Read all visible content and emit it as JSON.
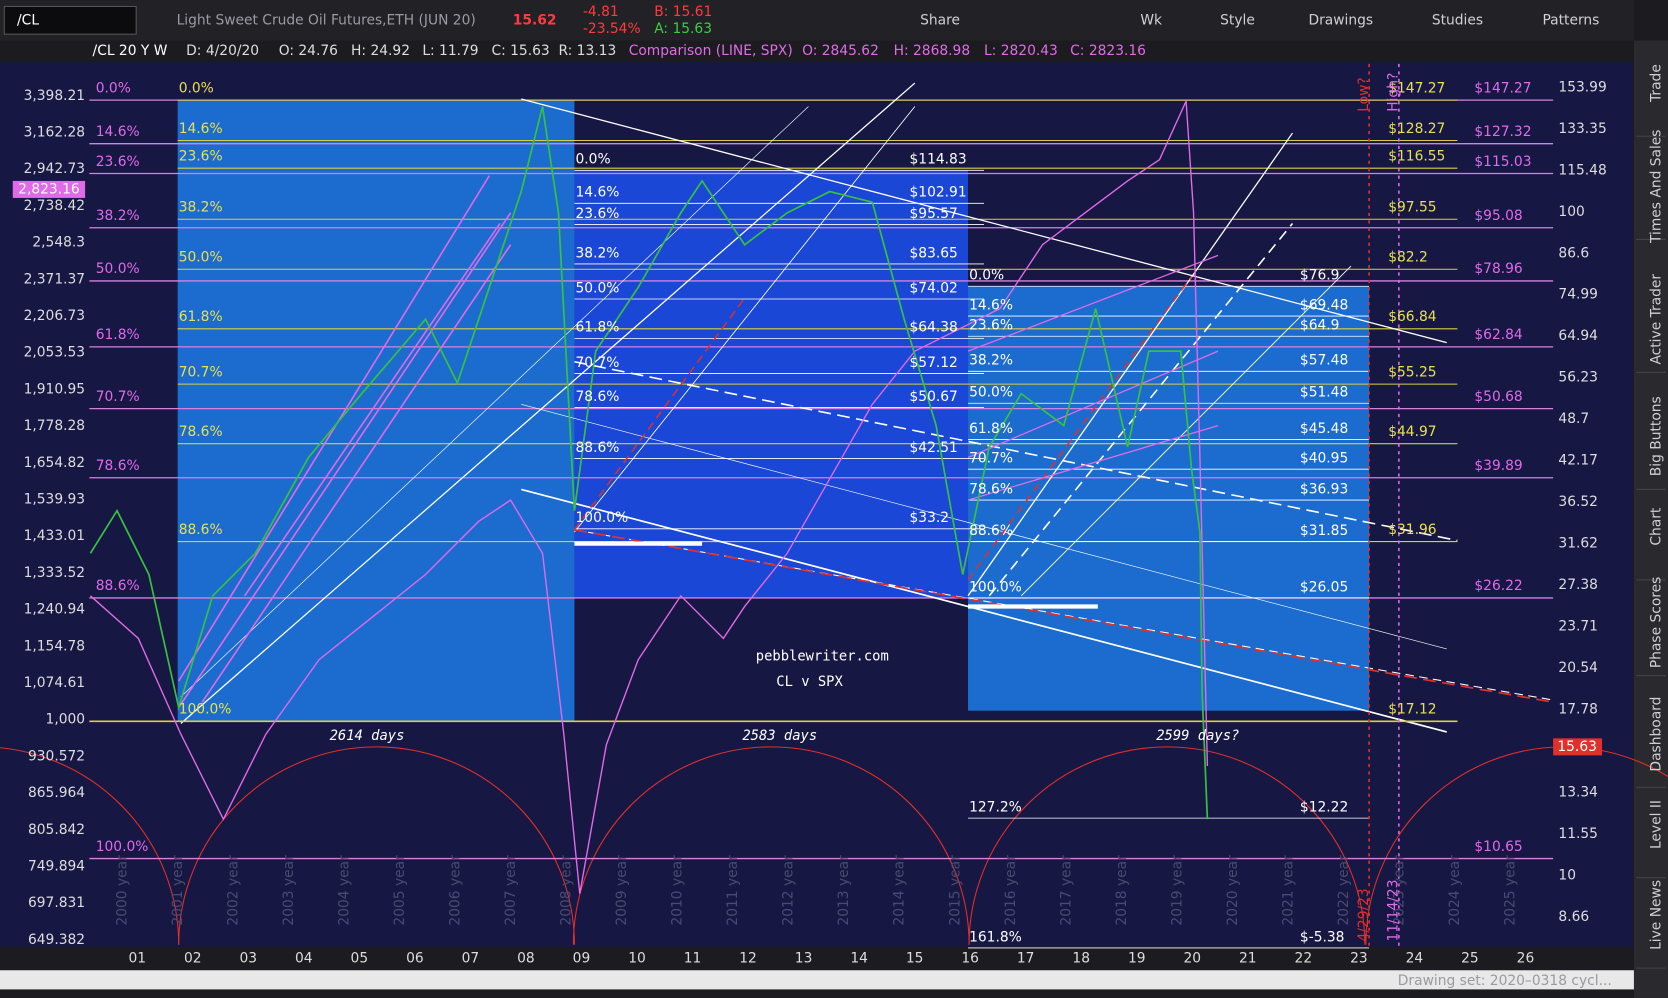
{
  "toolbar": {
    "symbol": "/CL",
    "description": "Light Sweet Crude Oil Futures,ETH (JUN 20)",
    "last": "15.62",
    "change": "-4.81",
    "change_pct": "-23.54%",
    "bid": "B: 15.61",
    "ask": "A: 15.63",
    "buttons": [
      "Share",
      "Wk",
      "Style",
      "Drawings",
      "Studies",
      "Patterns"
    ]
  },
  "header": {
    "study": "/CL 20 Y W",
    "items": [
      "D: 4/20/20",
      "O: 24.76",
      "H: 24.92",
      "L: 11.79",
      "C: 15.63",
      "R: 13.13"
    ],
    "comparison": "Comparison (LINE, SPX)",
    "comparison_items": [
      "O: 2845.62",
      "H: 2868.98",
      "L: 2820.43",
      "C: 2823.16"
    ]
  },
  "left_axis": {
    "labels": [
      "3,398.21",
      "3,162.28",
      "2,942.73",
      "2,738.42",
      "2,548.3",
      "2,371.37",
      "2,206.73",
      "2,053.53",
      "1,910.95",
      "1,778.28",
      "1,654.82",
      "1,539.93",
      "1,433.01",
      "1,333.52",
      "1,240.94",
      "1,154.78",
      "1,074.61",
      "1,000",
      "930.572",
      "865.964",
      "805.842",
      "749.894",
      "697.831",
      "649.382"
    ],
    "current": "2,823.16"
  },
  "right_axis": {
    "labels": [
      "153.99",
      "133.35",
      "115.48",
      "100",
      "86.6",
      "74.99",
      "64.94",
      "56.23",
      "48.7",
      "42.17",
      "36.52",
      "31.62",
      "27.38",
      "23.71",
      "20.54",
      "17.78",
      "13.34",
      "11.55",
      "10",
      "8.66"
    ],
    "current": "15.63"
  },
  "x_axis": {
    "labels": [
      "01",
      "02",
      "03",
      "04",
      "05",
      "06",
      "07",
      "08",
      "09",
      "10",
      "11",
      "12",
      "13",
      "14",
      "15",
      "16",
      "17",
      "18",
      "19",
      "20",
      "21",
      "22",
      "23",
      "24",
      "25",
      "26"
    ],
    "year_labels": [
      "2000 year",
      "2001 year",
      "2002 year",
      "2003 year",
      "2004 year",
      "2005 year",
      "2006 year",
      "2007 year",
      "2008 year",
      "2009 year",
      "2010 year",
      "2011 year",
      "2012 year",
      "2013 year",
      "2014 year",
      "2015 year",
      "2016 year",
      "2017 year",
      "2018 year",
      "2019 year",
      "2020 year",
      "2021 year",
      "2022 year",
      "2023 year",
      "2024 year",
      "2025 year"
    ]
  },
  "fib_pink": {
    "labels": [
      "0.0%",
      "14.6%",
      "23.6%",
      "38.2%",
      "50.0%",
      "61.8%",
      "70.7%",
      "78.6%",
      "88.6%",
      "100.0%"
    ],
    "prices": [
      "$147.27",
      "$127.32",
      "$115.03",
      "$95.08",
      "$78.96",
      "$62.84",
      "$50.68",
      "$39.89",
      "$26.22",
      "$10.65"
    ]
  },
  "fib_yellow": {
    "labels": [
      "0.0%",
      "14.6%",
      "23.6%",
      "38.2%",
      "50.0%",
      "61.8%",
      "70.7%",
      "78.6%",
      "88.6%",
      "100.0%"
    ],
    "prices": [
      "$147.27",
      "$128.27",
      "$116.55",
      "$97.55",
      "$82.2",
      "$66.84",
      "$55.25",
      "$44.97",
      "$31.96",
      "$17.12"
    ]
  },
  "fib_mid": {
    "labels": [
      "0.0%",
      "14.6%",
      "23.6%",
      "38.2%",
      "50.0%",
      "61.8%",
      "70.7%",
      "78.6%",
      "88.6%",
      "100.0%"
    ],
    "prices": [
      "$114.83",
      "$102.91",
      "$95.57",
      "$83.65",
      "$74.02",
      "$64.38",
      "$57.12",
      "$50.67",
      "$42.51",
      "$33.2"
    ]
  },
  "fib_right": {
    "labels": [
      "0.0%",
      "14.6%",
      "23.6%",
      "38.2%",
      "50.0%",
      "61.8%",
      "70.7%",
      "78.6%",
      "88.6%",
      "100.0%",
      "127.2%",
      "161.8%"
    ],
    "prices": [
      "$76.9",
      "$69.48",
      "$64.9",
      "$57.48",
      "$51.48",
      "$45.48",
      "$40.95",
      "$36.93",
      "$31.85",
      "$26.05",
      "$12.22",
      "$-5.38"
    ]
  },
  "annotations": {
    "site": "pebblewriter.com",
    "subtitle": "CL v SPX",
    "cycles": [
      "2614 days",
      "2583 days",
      "2599 days?"
    ],
    "low_date": "4/29/23",
    "high_date": "11/14/23",
    "low_tag": "Low?",
    "high_tag": "High?"
  },
  "sidebar": [
    "Trade",
    "Times And Sales",
    "Active Trader",
    "Big Buttons",
    "Chart",
    "Phase Scores",
    "Dashboard",
    "Level II",
    "Live News"
  ],
  "footer": "Drawing set: 2020–0318 cycl..."
}
